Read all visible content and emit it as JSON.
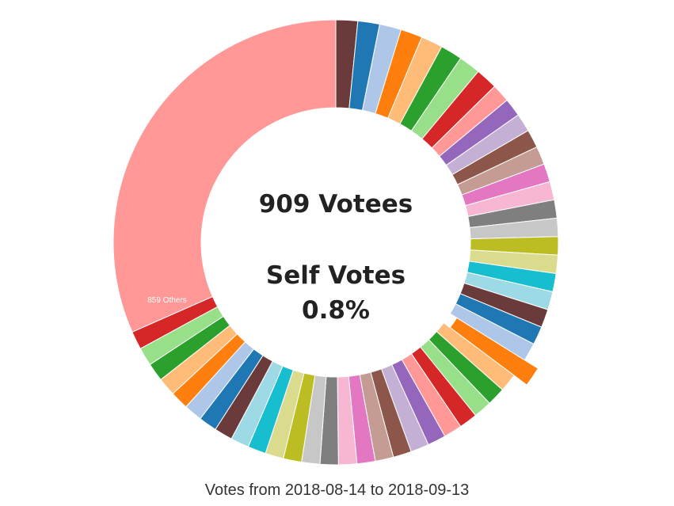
{
  "chart_data": {
    "type": "pie",
    "style": "donut",
    "center": {
      "line1": "909 Votees",
      "line2": "Self Votes",
      "line3": "0.8%"
    },
    "caption": "Votes from 2018-08-14 to 2018-09-13",
    "others": {
      "label": "859 Others",
      "value": 1000,
      "color": "#ff9896"
    },
    "highlighted_index": 24,
    "slices": [
      {
        "value": 50,
        "color": "#6b3a3a"
      },
      {
        "value": 50,
        "color": "#1f77b4"
      },
      {
        "value": 50,
        "color": "#aec7e8"
      },
      {
        "value": 50,
        "color": "#ff7f0e"
      },
      {
        "value": 50,
        "color": "#ffbb78"
      },
      {
        "value": 50,
        "color": "#2ca02c"
      },
      {
        "value": 50,
        "color": "#98df8a"
      },
      {
        "value": 50,
        "color": "#d62728"
      },
      {
        "value": 42,
        "color": "#ff9896"
      },
      {
        "value": 42,
        "color": "#9467bd"
      },
      {
        "value": 42,
        "color": "#c5b0d5"
      },
      {
        "value": 42,
        "color": "#8c564b"
      },
      {
        "value": 42,
        "color": "#c49c94"
      },
      {
        "value": 42,
        "color": "#e377c2"
      },
      {
        "value": 42,
        "color": "#f7b6d2"
      },
      {
        "value": 42,
        "color": "#7f7f7f"
      },
      {
        "value": 42,
        "color": "#c7c7c7"
      },
      {
        "value": 42,
        "color": "#bcbd22"
      },
      {
        "value": 42,
        "color": "#dbdb8d"
      },
      {
        "value": 42,
        "color": "#17becf"
      },
      {
        "value": 42,
        "color": "#9edae5"
      },
      {
        "value": 42,
        "color": "#6b3a3a"
      },
      {
        "value": 42,
        "color": "#1f77b4"
      },
      {
        "value": 42,
        "color": "#aec7e8"
      },
      {
        "value": 42,
        "color": "#ff7f0e"
      },
      {
        "value": 42,
        "color": "#ffbb78"
      },
      {
        "value": 42,
        "color": "#2ca02c"
      },
      {
        "value": 42,
        "color": "#98df8a"
      },
      {
        "value": 42,
        "color": "#d62728"
      },
      {
        "value": 42,
        "color": "#ff9896"
      },
      {
        "value": 42,
        "color": "#9467bd"
      },
      {
        "value": 42,
        "color": "#c5b0d5"
      },
      {
        "value": 42,
        "color": "#8c564b"
      },
      {
        "value": 42,
        "color": "#c49c94"
      },
      {
        "value": 42,
        "color": "#e377c2"
      },
      {
        "value": 42,
        "color": "#f7b6d2"
      },
      {
        "value": 42,
        "color": "#7f7f7f"
      },
      {
        "value": 42,
        "color": "#c7c7c7"
      },
      {
        "value": 42,
        "color": "#bcbd22"
      },
      {
        "value": 42,
        "color": "#dbdb8d"
      },
      {
        "value": 42,
        "color": "#17becf"
      },
      {
        "value": 42,
        "color": "#9edae5"
      },
      {
        "value": 42,
        "color": "#6b3a3a"
      },
      {
        "value": 42,
        "color": "#1f77b4"
      },
      {
        "value": 42,
        "color": "#aec7e8"
      },
      {
        "value": 42,
        "color": "#ff7f0e"
      },
      {
        "value": 42,
        "color": "#ffbb78"
      },
      {
        "value": 42,
        "color": "#2ca02c"
      },
      {
        "value": 42,
        "color": "#98df8a"
      },
      {
        "value": 42,
        "color": "#d62728"
      }
    ]
  }
}
